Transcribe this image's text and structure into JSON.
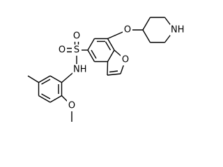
{
  "atoms": [
    {
      "label": "O"
    },
    {
      "label": "O"
    },
    {
      "label": "S"
    },
    {
      "label": "NH"
    },
    {
      "label": "O"
    },
    {
      "label": "O"
    },
    {
      "label": "NH"
    },
    {
      "label": "O"
    }
  ]
}
